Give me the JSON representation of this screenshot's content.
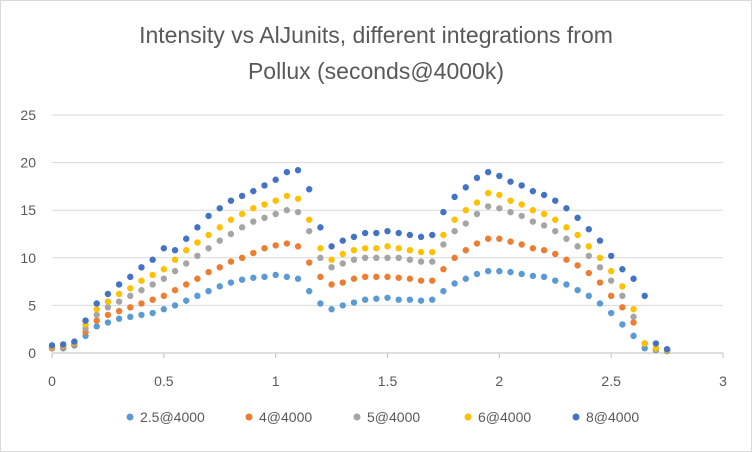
{
  "title_line1": "Intensity vs AlJunits, different integrations from",
  "title_line2": "Pollux (seconds@4000k)",
  "chart_data": {
    "type": "scatter",
    "title": "Intensity vs AlJunits, different integrations from Pollux (seconds@4000k)",
    "xlabel": "",
    "ylabel": "",
    "xlim": [
      0,
      3
    ],
    "ylim": [
      0,
      25
    ],
    "xticks": [
      0,
      0.5,
      1,
      1.5,
      2,
      2.5,
      3
    ],
    "yticks": [
      0,
      5,
      10,
      15,
      20,
      25
    ],
    "grid": "horizontal",
    "legend_position": "bottom",
    "x": [
      0,
      0.05,
      0.1,
      0.15,
      0.2,
      0.25,
      0.3,
      0.35,
      0.4,
      0.45,
      0.5,
      0.55,
      0.6,
      0.65,
      0.7,
      0.75,
      0.8,
      0.85,
      0.9,
      0.95,
      1.0,
      1.05,
      1.1,
      1.15,
      1.2,
      1.25,
      1.3,
      1.35,
      1.4,
      1.45,
      1.5,
      1.55,
      1.6,
      1.65,
      1.7,
      1.75,
      1.8,
      1.85,
      1.9,
      1.95,
      2.0,
      2.05,
      2.1,
      2.15,
      2.2,
      2.25,
      2.3,
      2.35,
      2.4,
      2.45,
      2.5,
      2.55,
      2.6,
      2.65,
      2.7,
      2.75
    ],
    "series": [
      {
        "name": "2.5@4000",
        "color": "#5b9bd5",
        "values": [
          0.5,
          0.5,
          0.8,
          1.8,
          2.8,
          3.2,
          3.6,
          3.8,
          4.0,
          4.2,
          4.6,
          5.0,
          5.5,
          6.0,
          6.5,
          7.0,
          7.4,
          7.7,
          7.9,
          8.0,
          8.2,
          8.0,
          7.8,
          6.5,
          5.2,
          4.6,
          5.0,
          5.3,
          5.6,
          5.7,
          5.8,
          5.6,
          5.6,
          5.5,
          5.6,
          6.5,
          7.3,
          7.8,
          8.3,
          8.6,
          8.6,
          8.5,
          8.3,
          8.1,
          8.0,
          7.6,
          7.2,
          6.6,
          6.0,
          5.2,
          4.2,
          3.0,
          1.8,
          0.5,
          0.3,
          0.2
        ]
      },
      {
        "name": "4@4000",
        "color": "#ed7d31",
        "values": [
          0.5,
          0.6,
          0.9,
          2.2,
          3.4,
          4.0,
          4.4,
          4.8,
          5.2,
          5.6,
          6.0,
          6.6,
          7.2,
          7.8,
          8.5,
          9.0,
          9.6,
          10.0,
          10.5,
          11.0,
          11.3,
          11.5,
          11.2,
          9.5,
          8.0,
          7.2,
          7.4,
          7.8,
          8.0,
          8.0,
          8.0,
          7.9,
          7.8,
          7.6,
          7.6,
          8.8,
          10.0,
          10.8,
          11.5,
          12.0,
          12.0,
          11.7,
          11.4,
          11.0,
          10.8,
          10.4,
          9.8,
          9.2,
          8.4,
          7.4,
          6.0,
          4.8,
          3.2,
          1.0,
          0.4,
          0.3
        ]
      },
      {
        "name": "5@4000",
        "color": "#a5a5a5",
        "values": [
          0.6,
          0.7,
          1.0,
          2.6,
          4.0,
          4.8,
          5.4,
          6.0,
          6.6,
          7.2,
          7.8,
          8.6,
          9.4,
          10.2,
          11.0,
          11.8,
          12.5,
          13.2,
          13.8,
          14.2,
          14.6,
          15.0,
          14.8,
          12.8,
          10.0,
          9.0,
          9.4,
          9.8,
          10.0,
          10.0,
          10.0,
          10.0,
          9.8,
          9.6,
          9.6,
          11.4,
          12.8,
          13.6,
          14.6,
          15.4,
          15.2,
          14.8,
          14.4,
          13.8,
          13.4,
          12.8,
          12.0,
          11.2,
          10.2,
          9.0,
          7.6,
          6.0,
          3.8,
          1.0,
          0.4,
          0.3
        ]
      },
      {
        "name": "6@4000",
        "color": "#ffc000",
        "values": [
          0.7,
          0.8,
          1.1,
          3.0,
          4.6,
          5.4,
          6.2,
          6.8,
          7.6,
          8.2,
          8.8,
          9.8,
          10.8,
          11.6,
          12.4,
          13.2,
          14.0,
          14.6,
          15.2,
          15.6,
          16.0,
          16.5,
          16.2,
          14.0,
          11.0,
          9.8,
          10.4,
          10.8,
          11.0,
          11.0,
          11.2,
          11.0,
          10.8,
          10.6,
          10.6,
          12.4,
          14.0,
          15.0,
          15.8,
          16.8,
          16.6,
          16.0,
          15.6,
          15.0,
          14.6,
          14.0,
          13.2,
          12.4,
          11.2,
          10.0,
          8.6,
          7.0,
          4.6,
          1.0,
          0.5,
          0.3
        ]
      },
      {
        "name": "8@4000",
        "color": "#4472c4",
        "values": [
          0.8,
          0.9,
          1.2,
          3.4,
          5.2,
          6.2,
          7.2,
          8.0,
          9.0,
          9.8,
          11.0,
          10.8,
          12.0,
          13.2,
          14.4,
          15.2,
          16.0,
          16.5,
          17.0,
          17.6,
          18.2,
          19.0,
          19.2,
          17.2,
          13.2,
          11.2,
          11.8,
          12.2,
          12.6,
          12.6,
          12.8,
          12.6,
          12.4,
          12.2,
          12.4,
          14.8,
          16.4,
          17.4,
          18.4,
          19.0,
          18.6,
          18.0,
          17.6,
          17.0,
          16.6,
          16.0,
          15.2,
          14.2,
          13.0,
          11.8,
          10.2,
          8.8,
          7.8,
          6.0,
          1.0,
          0.4
        ]
      }
    ]
  }
}
